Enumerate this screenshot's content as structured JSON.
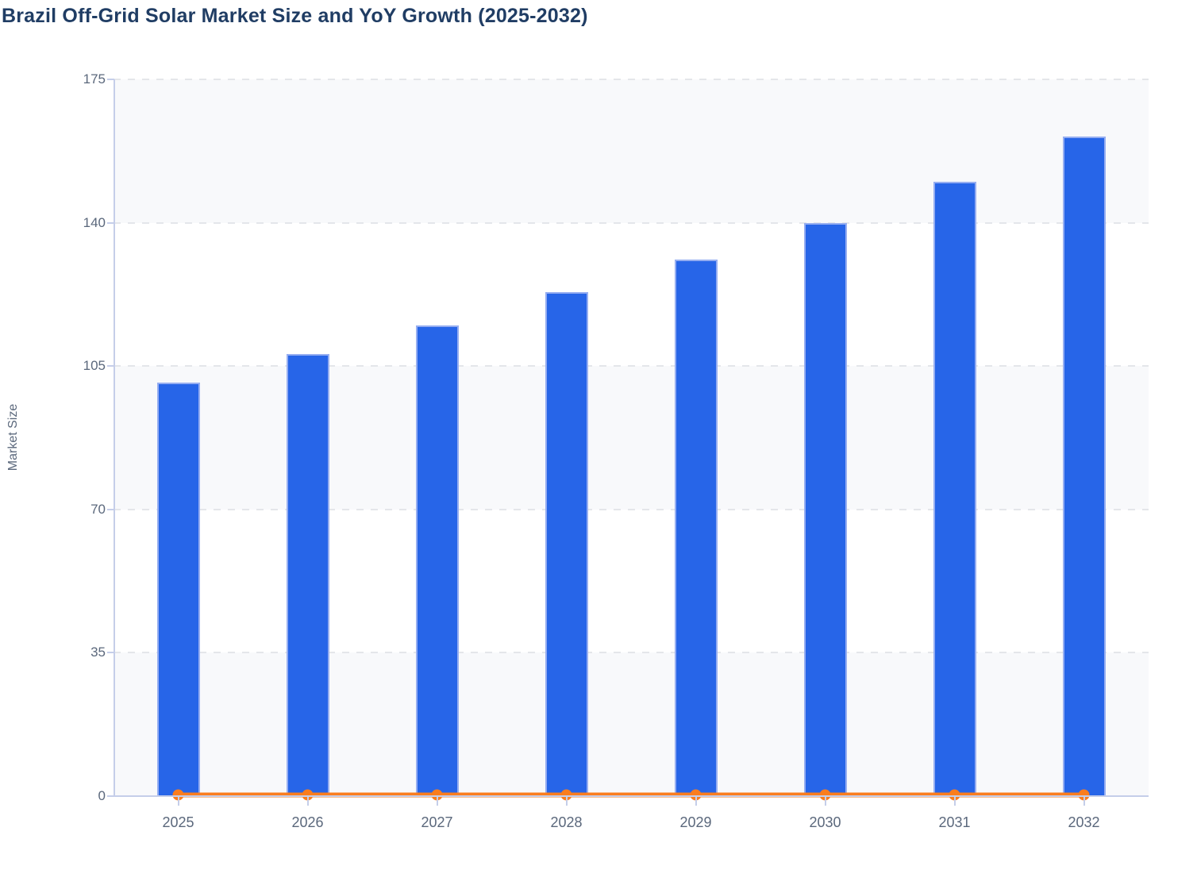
{
  "chart_data": {
    "type": "bar",
    "title": "Brazil Off-Grid Solar Market Size and YoY Growth (2025-2032)",
    "categories": [
      "2025",
      "2026",
      "2027",
      "2028",
      "2029",
      "2030",
      "2031",
      "2032"
    ],
    "series": [
      {
        "name": "Market Size",
        "type": "bar",
        "values": [
          101,
          108,
          115,
          123,
          131,
          140,
          150,
          161
        ],
        "color": "#2765e8"
      },
      {
        "name": "YoY Growth",
        "type": "line",
        "values": [
          0.3,
          0.3,
          0.3,
          0.3,
          0.3,
          0.3,
          0.3,
          0.3
        ],
        "color": "#fa7d1e",
        "note": "line renders flat just above 0 on the visible left axis; no secondary axis labels are shown"
      }
    ],
    "xlabel": "",
    "ylabel": "Market Size",
    "ylim": [
      0,
      175
    ],
    "yticks": [
      0,
      35,
      70,
      105,
      140,
      175
    ],
    "legend_position": "none",
    "grid": "horizontal dashed",
    "plot_bands": "alternating horizontal stripes, light band starts at top (175-140)"
  },
  "colors": {
    "title": "#203d64",
    "axis_text": "#5b687c",
    "bar_fill": "#2765e8",
    "bar_border": "#96aef1",
    "line_color": "#fa7d1e",
    "gridline": "#e4e6ea",
    "axis_line": "#c5cee9",
    "band_light": "#f8f9fb",
    "band_white": "#ffffff",
    "background": "#ffffff"
  }
}
